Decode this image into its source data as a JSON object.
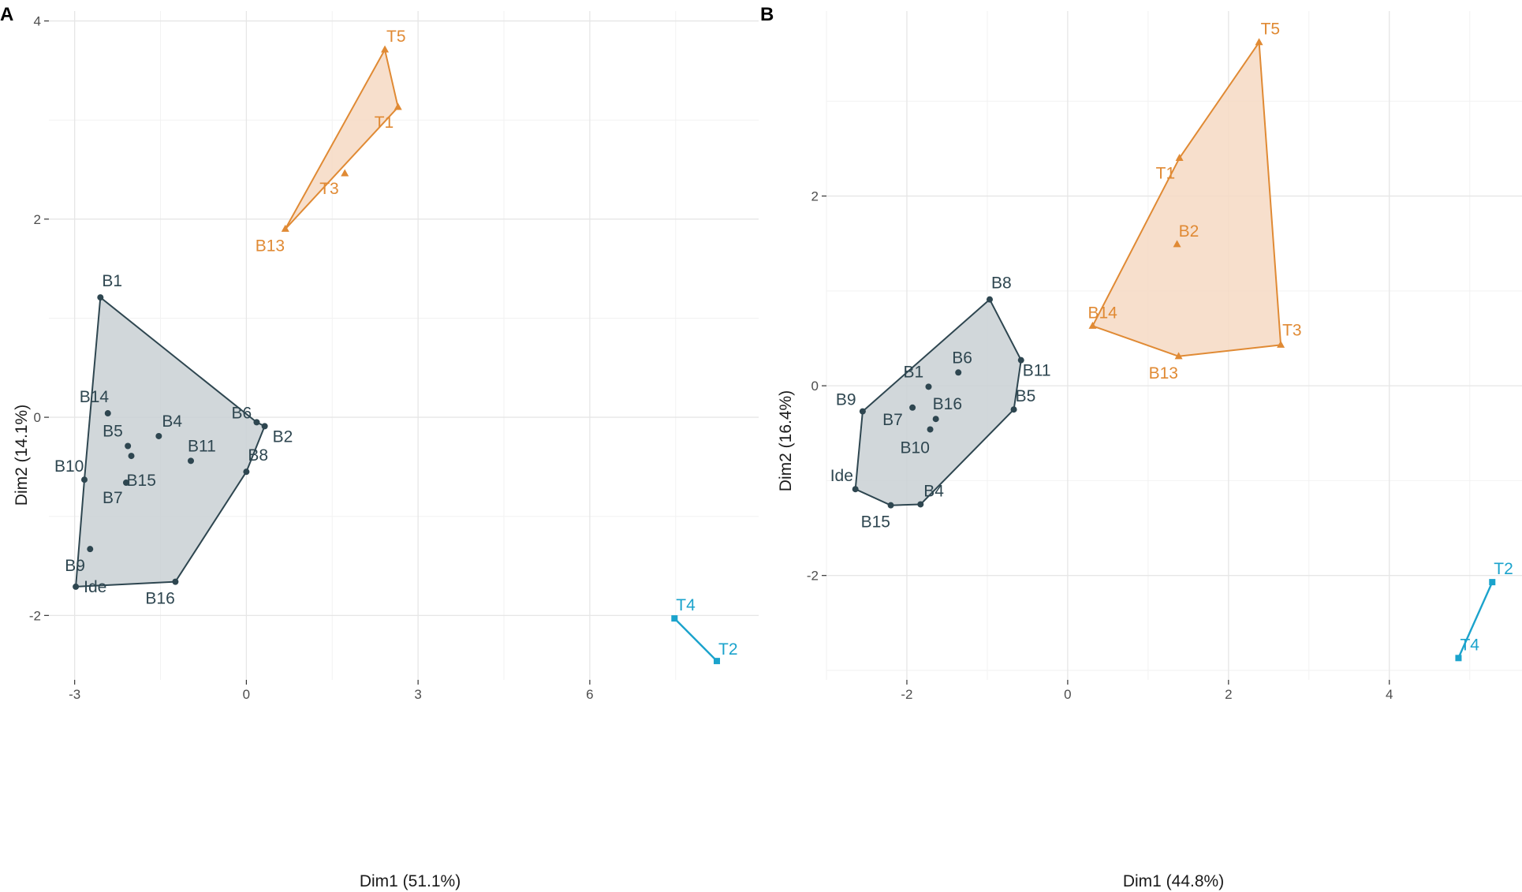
{
  "chart_data": [
    {
      "type": "scatter",
      "panel_tag": "A",
      "xlabel": "Dim1 (51.1%)",
      "ylabel": "Dim2 (14.1%)",
      "xlim": [
        -3.45,
        8.95
      ],
      "ylim": [
        -2.65,
        4.1
      ],
      "x_major_ticks": [
        -3,
        0,
        3,
        6
      ],
      "x_minor_ticks": [
        -1.5,
        1.5,
        4.5,
        7.5
      ],
      "y_major_ticks": [
        -2,
        0,
        2,
        4
      ],
      "y_minor_ticks": [
        -1,
        1,
        3
      ],
      "grid": true,
      "groups": [
        {
          "name": "cluster-dark",
          "color": "#2e4650",
          "fill": "#c9d0d3",
          "marker": "circle",
          "hull": [
            "B1",
            "B6",
            "B2",
            "B8",
            "B16",
            "Ide",
            "B10"
          ],
          "points": [
            {
              "label": "B1",
              "x": -2.55,
              "y": 1.21
            },
            {
              "label": "B14",
              "x": -2.42,
              "y": 0.04
            },
            {
              "label": "B6",
              "x": 0.18,
              "y": -0.05
            },
            {
              "label": "B2",
              "x": 0.32,
              "y": -0.09
            },
            {
              "label": "B4",
              "x": -1.53,
              "y": -0.19
            },
            {
              "label": "B5",
              "x": -2.07,
              "y": -0.29
            },
            {
              "label": "B15",
              "x": -2.01,
              "y": -0.39
            },
            {
              "label": "B11",
              "x": -0.97,
              "y": -0.44
            },
            {
              "label": "B8",
              "x": 0.0,
              "y": -0.55
            },
            {
              "label": "B10",
              "x": -2.83,
              "y": -0.63
            },
            {
              "label": "B7",
              "x": -2.1,
              "y": -0.66
            },
            {
              "label": "B9",
              "x": -2.73,
              "y": -1.33
            },
            {
              "label": "B16",
              "x": -1.24,
              "y": -1.66
            },
            {
              "label": "Ide",
              "x": -2.98,
              "y": -1.71
            }
          ]
        },
        {
          "name": "cluster-orange",
          "color": "#e08a34",
          "fill": "#f6d9c3",
          "marker": "triangle",
          "hull": [
            "T5",
            "T1",
            "B13"
          ],
          "points": [
            {
              "label": "T5",
              "x": 2.42,
              "y": 3.71
            },
            {
              "label": "T1",
              "x": 2.65,
              "y": 3.13
            },
            {
              "label": "T3",
              "x": 1.72,
              "y": 2.46
            },
            {
              "label": "B13",
              "x": 0.68,
              "y": 1.9
            }
          ]
        },
        {
          "name": "cluster-blue",
          "color": "#1ba3cc",
          "fill": "none",
          "marker": "square",
          "hull": [
            "T4",
            "T2"
          ],
          "points": [
            {
              "label": "T4",
              "x": 7.48,
              "y": -2.03
            },
            {
              "label": "T2",
              "x": 8.22,
              "y": -2.46
            }
          ]
        }
      ]
    },
    {
      "type": "scatter",
      "panel_tag": "B",
      "xlabel": "Dim1 (44.8%)",
      "ylabel": "Dim2 (16.4%)",
      "xlim": [
        -3.0,
        5.65
      ],
      "ylim": [
        -3.1,
        3.95
      ],
      "x_major_ticks": [
        -2,
        0,
        2,
        4
      ],
      "x_minor_ticks": [
        -3,
        -1,
        1,
        3,
        5
      ],
      "y_major_ticks": [
        -2,
        0,
        2
      ],
      "y_minor_ticks": [
        -3,
        -1,
        1,
        3
      ],
      "grid": true,
      "groups": [
        {
          "name": "cluster-dark",
          "color": "#2e4650",
          "fill": "#c9d0d3",
          "marker": "circle",
          "hull": [
            "B8",
            "B11",
            "B5",
            "B4",
            "B15",
            "Ide",
            "B9"
          ],
          "points": [
            {
              "label": "B8",
              "x": -0.97,
              "y": 0.91
            },
            {
              "label": "B11",
              "x": -0.58,
              "y": 0.27
            },
            {
              "label": "B6",
              "x": -1.36,
              "y": 0.14
            },
            {
              "label": "B1",
              "x": -1.73,
              "y": -0.01
            },
            {
              "label": "B5",
              "x": -0.67,
              "y": -0.25
            },
            {
              "label": "B9",
              "x": -2.55,
              "y": -0.27
            },
            {
              "label": "B7",
              "x": -1.93,
              "y": -0.23
            },
            {
              "label": "B16",
              "x": -1.64,
              "y": -0.35
            },
            {
              "label": "B10",
              "x": -1.71,
              "y": -0.46
            },
            {
              "label": "Ide",
              "x": -2.64,
              "y": -1.09
            },
            {
              "label": "B15",
              "x": -2.2,
              "y": -1.26
            },
            {
              "label": "B4",
              "x": -1.83,
              "y": -1.25
            }
          ]
        },
        {
          "name": "cluster-orange",
          "color": "#e08a34",
          "fill": "#f6d9c3",
          "marker": "triangle",
          "hull": [
            "T5",
            "T3",
            "B13",
            "B14",
            "T1"
          ],
          "points": [
            {
              "label": "T5",
              "x": 2.38,
              "y": 3.62
            },
            {
              "label": "T1",
              "x": 1.39,
              "y": 2.4
            },
            {
              "label": "B2",
              "x": 1.36,
              "y": 1.49
            },
            {
              "label": "B14",
              "x": 0.31,
              "y": 0.63
            },
            {
              "label": "T3",
              "x": 2.65,
              "y": 0.43
            },
            {
              "label": "B13",
              "x": 1.38,
              "y": 0.31
            }
          ]
        },
        {
          "name": "cluster-blue",
          "color": "#1ba3cc",
          "fill": "none",
          "marker": "square",
          "hull": [
            "T2",
            "T4"
          ],
          "points": [
            {
              "label": "T2",
              "x": 5.28,
              "y": -2.07
            },
            {
              "label": "T4",
              "x": 4.86,
              "y": -2.87
            }
          ]
        }
      ]
    }
  ]
}
